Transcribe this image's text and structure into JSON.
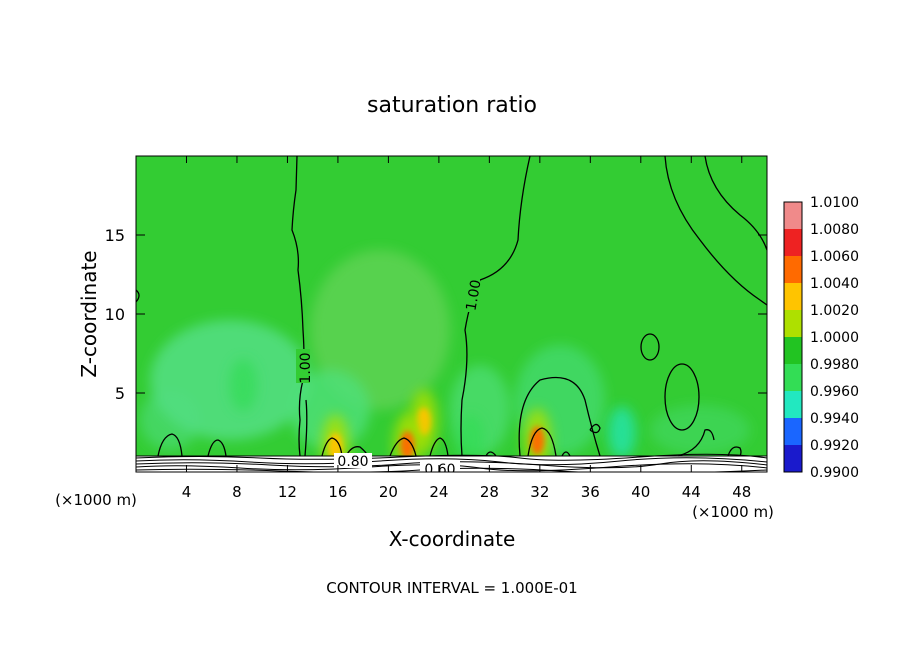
{
  "chart_data": {
    "type": "heatmap",
    "title": "saturation ratio",
    "xlabel": "X-coordinate",
    "ylabel": "Z-coordinate",
    "x_unit": "(×1000 m)",
    "y_unit": "(×1000 m)",
    "xlim": [
      0,
      50
    ],
    "ylim": [
      0,
      20
    ],
    "xticks": [
      "4",
      "8",
      "12",
      "16",
      "20",
      "24",
      "28",
      "32",
      "36",
      "40",
      "44",
      "48"
    ],
    "yticks": [
      "5",
      "10",
      "15"
    ],
    "contour_labels": [
      "1.00",
      "1.00",
      "0.80",
      "0.60"
    ],
    "colorbar": {
      "labels": [
        "1.0100",
        "1.0080",
        "1.0060",
        "1.0040",
        "1.0020",
        "1.0000",
        "0.9980",
        "0.9960",
        "0.9940",
        "0.9920",
        "0.9900"
      ],
      "colors": [
        "#f08a8a",
        "#ee2222",
        "#ff6a00",
        "#ffc400",
        "#aee000",
        "#22c422",
        "#33dd55",
        "#22e8c0",
        "#1a66ff",
        "#1a1acc",
        "#6a1a9a"
      ]
    },
    "background_color": "#33cc33",
    "hotspots": [
      {
        "x": 22.8,
        "z": 3.2,
        "value": 1.0045
      },
      {
        "x": 21.5,
        "z": 1.7,
        "value": 1.0065
      },
      {
        "x": 15.8,
        "z": 1.6,
        "value": 1.004
      },
      {
        "x": 31.8,
        "z": 2.0,
        "value": 1.007
      }
    ],
    "coldspots": [
      {
        "x": 38.5,
        "z": 2.5,
        "value": 0.9965
      },
      {
        "x": 8.5,
        "z": 5.5,
        "value": 0.9985
      },
      {
        "x": 26.5,
        "z": 2.0,
        "value": 0.9975
      }
    ],
    "footnote": "CONTOUR INTERVAL = 1.000E-01"
  }
}
